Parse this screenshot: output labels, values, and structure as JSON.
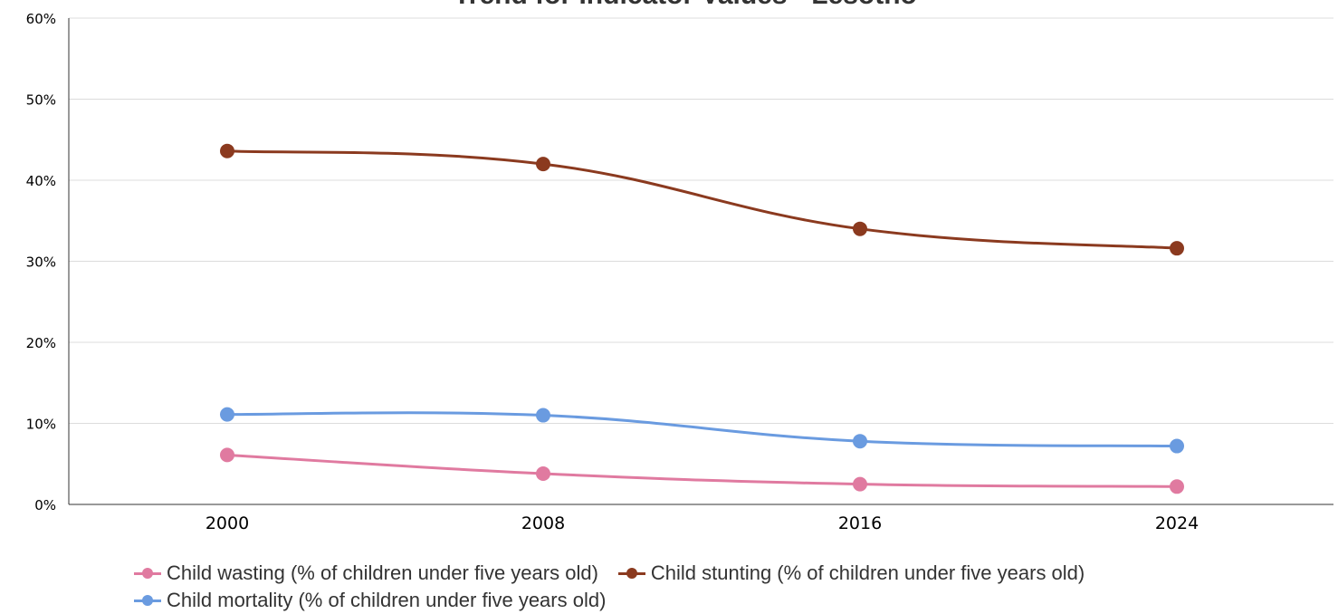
{
  "chart_data": {
    "type": "line",
    "title": "Trend for Indicator Values - Lesotho",
    "categories": [
      "2000",
      "2008",
      "2016",
      "2024"
    ],
    "y_ticks": [
      "0%",
      "10%",
      "20%",
      "30%",
      "40%",
      "50%",
      "60%"
    ],
    "ylim": [
      0,
      60
    ],
    "grid": true,
    "legend_position": "bottom",
    "series": [
      {
        "name": "Child wasting (% of children under five years old)",
        "color": "#e07aa0",
        "values": [
          6.1,
          3.8,
          2.5,
          2.2
        ]
      },
      {
        "name": "Child stunting (% of children under five years old)",
        "color": "#8b3a1f",
        "values": [
          43.6,
          42.0,
          34.0,
          31.6
        ]
      },
      {
        "name": "Child mortality (% of children under five years old)",
        "color": "#6a9be0",
        "values": [
          11.1,
          11.0,
          7.8,
          7.2
        ]
      }
    ]
  }
}
